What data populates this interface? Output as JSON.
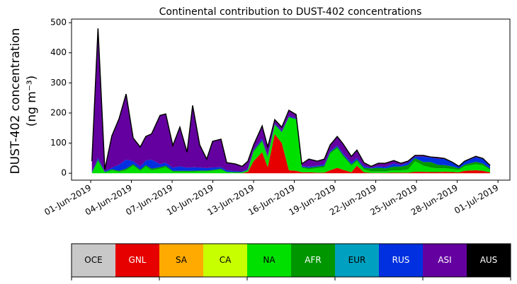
{
  "chart_data": {
    "type": "stacked_area",
    "title": "Continental contribution to DUST-402 concentrations",
    "y_label": [
      "DUST-402 concentration",
      "(ng m⁻³)"
    ],
    "x": [
      0.09,
      0.54,
      1.04,
      1.56,
      2.09,
      2.61,
      3.13,
      3.65,
      4.06,
      4.49,
      5.11,
      5.53,
      6.05,
      6.57,
      7.1,
      7.51,
      8.03,
      8.55,
      8.98,
      9.6,
      10.02,
      10.64,
      11.16,
      11.58,
      12,
      12.63,
      13.04,
      13.56,
      14.08,
      14.6,
      15.13,
      15.55,
      16.07,
      16.69,
      17.21,
      17.64,
      18.16,
      18.57,
      19.2,
      19.61,
      20.13,
      20.66,
      21.18,
      21.7,
      22.33,
      22.85,
      23.37,
      23.89,
      24.51,
      25.04,
      25.56,
      26.07,
      26.7,
      27.12,
      27.54,
      28.37,
      28.89,
      29.42
    ],
    "xlim": [
      -1.41,
      30.88
    ],
    "xticks": [
      {
        "value": 0,
        "label": "01-Jun-2019"
      },
      {
        "value": 3,
        "label": "04-Jun-2019"
      },
      {
        "value": 6,
        "label": "07-Jun-2019"
      },
      {
        "value": 9,
        "label": "10-Jun-2019"
      },
      {
        "value": 12,
        "label": "13-Jun-2019"
      },
      {
        "value": 15,
        "label": "16-Jun-2019"
      },
      {
        "value": 18,
        "label": "19-Jun-2019"
      },
      {
        "value": 21,
        "label": "22-Jun-2019"
      },
      {
        "value": 24,
        "label": "25-Jun-2019"
      },
      {
        "value": 27,
        "label": "28-Jun-2019"
      },
      {
        "value": 30,
        "label": "01-Jul-2019"
      }
    ],
    "ylim": [
      -23,
      512
    ],
    "yticks": [
      0,
      100,
      200,
      300,
      400,
      500
    ],
    "outline_color": "#000000",
    "series": [
      {
        "name": "OCE",
        "color": "#c8c8c8",
        "values": [
          0,
          0,
          0,
          0,
          0,
          0,
          0,
          0,
          0,
          0,
          0,
          0,
          0,
          0,
          0,
          0,
          0,
          0,
          0,
          0,
          0,
          0,
          0,
          0,
          0,
          0,
          0,
          0,
          0,
          0,
          0,
          0,
          0,
          0,
          0,
          0,
          0,
          0,
          0,
          0,
          0,
          0,
          0,
          0,
          0,
          0,
          0,
          0,
          0,
          0,
          0,
          0,
          0,
          0,
          0,
          0,
          0,
          0
        ]
      },
      {
        "name": "GNL",
        "color": "#e60000",
        "values": [
          0,
          0,
          0,
          0,
          0,
          0,
          0,
          0,
          0,
          0,
          0,
          0,
          0,
          0,
          0,
          0,
          0,
          0,
          0,
          0,
          0,
          0,
          0,
          5,
          40,
          70,
          20,
          130,
          100,
          10,
          8,
          3,
          3,
          2,
          2,
          10,
          18,
          12,
          3,
          25,
          3,
          1,
          1,
          1,
          2,
          2,
          2,
          5,
          5,
          4,
          4,
          5,
          4,
          3,
          8,
          10,
          8,
          3
        ]
      },
      {
        "name": "SA",
        "color": "#ffaa00",
        "values": [
          0,
          0,
          0,
          0,
          0,
          0,
          0,
          0,
          0,
          0,
          0,
          0,
          0,
          0,
          0,
          0,
          0,
          0,
          0,
          0,
          0,
          0,
          0,
          0,
          0,
          0,
          0,
          0,
          0,
          0,
          0,
          0,
          0,
          0,
          0,
          0,
          0,
          0,
          0,
          0,
          0,
          0,
          0,
          0,
          0,
          0,
          0,
          0,
          0,
          0,
          0,
          0,
          0,
          0,
          0,
          0,
          0,
          0
        ]
      },
      {
        "name": "CA",
        "color": "#c8ff00",
        "values": [
          0,
          0,
          0,
          0,
          0,
          0,
          0,
          0,
          0,
          0,
          0,
          0,
          0,
          0,
          0,
          0,
          0,
          0,
          0,
          0,
          0,
          0,
          0,
          0,
          0,
          0,
          0,
          0,
          0,
          0,
          0,
          0,
          0,
          0,
          0,
          0,
          0,
          0,
          0,
          0,
          0,
          0,
          0,
          0,
          0,
          0,
          0,
          0,
          0,
          0,
          0,
          0,
          0,
          0,
          0,
          0,
          0,
          0
        ]
      },
      {
        "name": "NA",
        "color": "#00e000",
        "values": [
          0,
          40,
          2,
          10,
          5,
          10,
          25,
          8,
          22,
          10,
          15,
          20,
          5,
          5,
          5,
          5,
          6,
          6,
          8,
          12,
          3,
          2,
          2,
          5,
          30,
          35,
          30,
          30,
          35,
          175,
          170,
          15,
          10,
          15,
          18,
          55,
          65,
          45,
          22,
          15,
          10,
          5,
          5,
          5,
          8,
          8,
          10,
          35,
          20,
          15,
          12,
          12,
          10,
          8,
          15,
          20,
          18,
          8
        ]
      },
      {
        "name": "AFR",
        "color": "#009600",
        "values": [
          2,
          5,
          2,
          3,
          3,
          5,
          5,
          4,
          5,
          5,
          5,
          5,
          3,
          3,
          3,
          3,
          3,
          3,
          3,
          3,
          2,
          2,
          2,
          2,
          5,
          5,
          5,
          2,
          2,
          2,
          2,
          3,
          5,
          5,
          5,
          5,
          5,
          5,
          5,
          5,
          5,
          10,
          12,
          10,
          12,
          12,
          15,
          10,
          12,
          18,
          12,
          10,
          8,
          5,
          5,
          8,
          6,
          4
        ]
      },
      {
        "name": "EUR",
        "color": "#00a0c0",
        "values": [
          0,
          0,
          0,
          0,
          0,
          0,
          0,
          0,
          0,
          0,
          0,
          0,
          0,
          0,
          0,
          0,
          0,
          0,
          0,
          0,
          0,
          0,
          0,
          0,
          0,
          0,
          0,
          0,
          0,
          0,
          0,
          0,
          0,
          0,
          0,
          0,
          0,
          0,
          0,
          0,
          0,
          0,
          0,
          0,
          0,
          0,
          0,
          0,
          0,
          0,
          0,
          0,
          0,
          0,
          0,
          0,
          0,
          0
        ]
      },
      {
        "name": "RUS",
        "color": "#0030e0",
        "values": [
          3,
          5,
          3,
          5,
          20,
          30,
          10,
          10,
          15,
          30,
          10,
          10,
          10,
          15,
          10,
          12,
          10,
          8,
          8,
          5,
          5,
          3,
          2,
          3,
          3,
          5,
          3,
          3,
          3,
          3,
          3,
          3,
          4,
          3,
          5,
          4,
          4,
          5,
          6,
          5,
          5,
          2,
          5,
          5,
          10,
          5,
          8,
          5,
          18,
          15,
          20,
          20,
          12,
          6,
          10,
          15,
          15,
          8
        ]
      },
      {
        "name": "ASI",
        "color": "#6400a0",
        "values": [
          35,
          431,
          5,
          106,
          153,
          218,
          77,
          65,
          80,
          86,
          162,
          162,
          74,
          130,
          52,
          205,
          75,
          30,
          87,
          93,
          25,
          24,
          17,
          25,
          16,
          42,
          29,
          13,
          13,
          19,
          12,
          7,
          25,
          15,
          17,
          20,
          30,
          32,
          20,
          27,
          12,
          5,
          10,
          12,
          10,
          6,
          5,
          4,
          4,
          2,
          4,
          2,
          1,
          1,
          2,
          3,
          2,
          3
        ]
      },
      {
        "name": "AUS",
        "color": "#000000",
        "values": [
          0,
          0,
          0,
          0,
          0,
          0,
          0,
          0,
          0,
          0,
          0,
          0,
          0,
          0,
          0,
          0,
          0,
          0,
          0,
          0,
          0,
          0,
          0,
          0,
          0,
          0,
          0,
          0,
          0,
          0,
          0,
          0,
          0,
          0,
          0,
          0,
          0,
          0,
          0,
          0,
          0,
          0,
          0,
          0,
          0,
          0,
          0,
          0,
          0,
          0,
          0,
          0,
          0,
          0,
          0,
          0,
          0,
          0
        ]
      }
    ]
  }
}
